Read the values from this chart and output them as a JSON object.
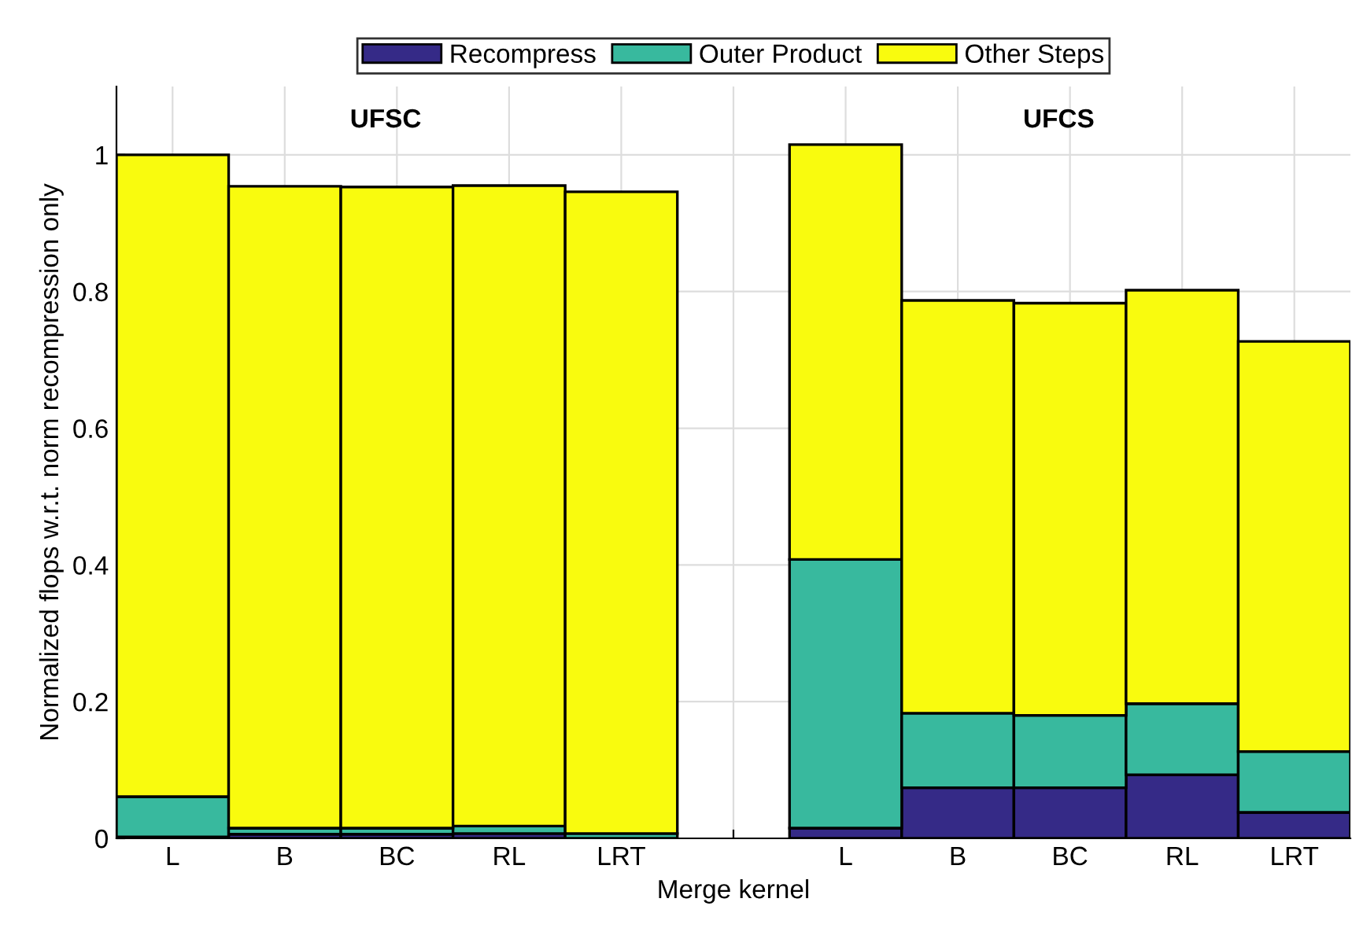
{
  "chart_data": {
    "type": "bar",
    "stacked": true,
    "xlabel": "Merge kernel",
    "ylabel": "Normalized flops w.r.t. norm recompression only",
    "categories": [
      "L",
      "B",
      "BC",
      "RL",
      "LRT",
      null,
      "L",
      "B",
      "BC",
      "RL",
      "LRT"
    ],
    "series": [
      {
        "name": "Recompress",
        "color": "#352a87",
        "values": [
          0.002,
          0.006,
          0.006,
          0.007,
          null,
          0,
          0.015,
          0.074,
          0.074,
          0.093,
          0.038
        ]
      },
      {
        "name": "Outer Product",
        "color": "#38b99e",
        "values": [
          0.059,
          0.009,
          0.009,
          0.011,
          0.007,
          0,
          0.393,
          0.109,
          0.106,
          0.104,
          0.089
        ]
      },
      {
        "name": "Other Steps",
        "color": "#f9fb0e",
        "values": [
          0.939,
          0.939,
          0.938,
          0.937,
          0.939,
          0,
          0.607,
          0.604,
          0.603,
          0.605,
          0.6
        ]
      }
    ],
    "ylim": [
      0,
      1.1
    ],
    "yticks": [
      0,
      0.2,
      0.4,
      0.6,
      0.8,
      1
    ],
    "annotations": [
      "UFSC",
      "UFCS"
    ],
    "grid": true,
    "legend": "top"
  }
}
